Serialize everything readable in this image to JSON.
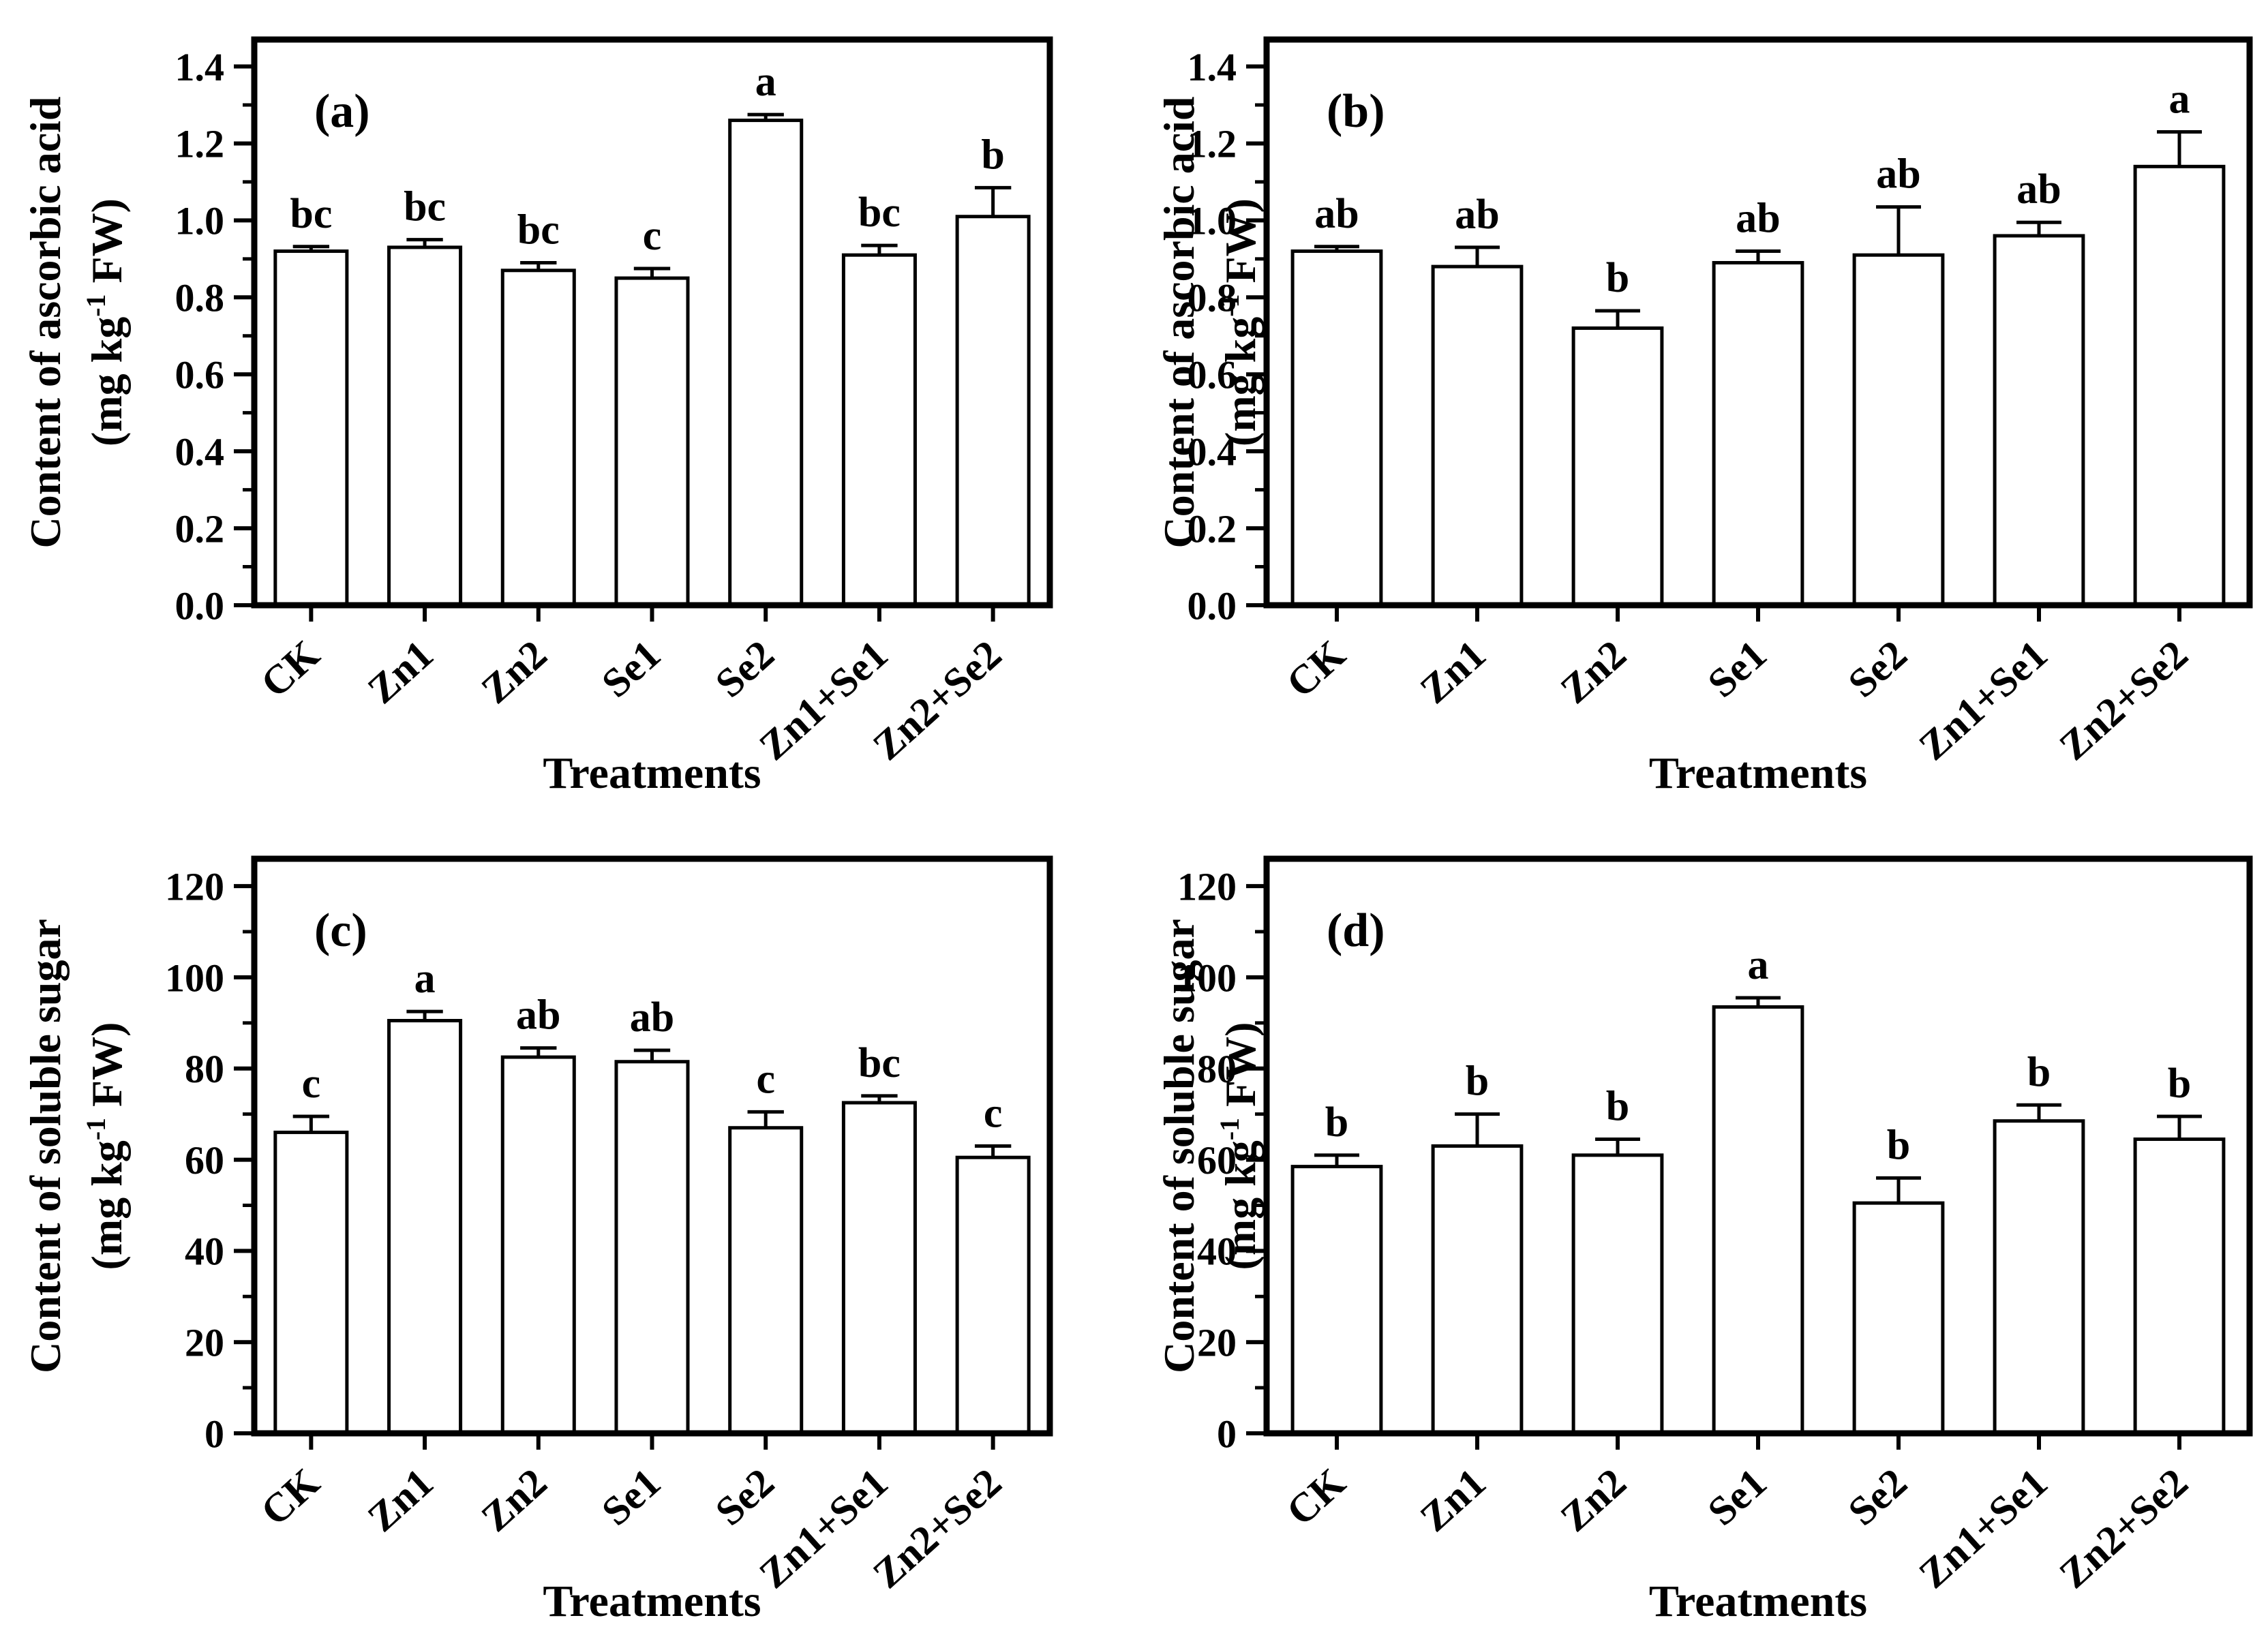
{
  "figure": {
    "background_color": "#ffffff",
    "ink_color": "#000000",
    "layout": "2x2 grid of bar chart panels"
  },
  "chart_data": [
    {
      "id": "a",
      "type": "bar",
      "panel_label": "(a)",
      "ylabel_line1": "Content of ascorbic acid",
      "ylabel_unit_prefix": "(mg kg",
      "ylabel_unit_sup": "-1",
      "ylabel_unit_suffix": " FW)",
      "xlabel": "Treatments",
      "categories": [
        "CK",
        "Zn1",
        "Zn2",
        "Se1",
        "Se2",
        "Zn1+Se1",
        "Zn2+Se2"
      ],
      "values": [
        0.92,
        0.93,
        0.87,
        0.85,
        1.26,
        0.91,
        1.01
      ],
      "errors": [
        0.012,
        0.02,
        0.02,
        0.025,
        0.015,
        0.025,
        0.075
      ],
      "sig_letters": [
        "bc",
        "bc",
        "bc",
        "c",
        "a",
        "bc",
        "b"
      ],
      "ylim": [
        0,
        1.47
      ],
      "ytick_values": [
        0.0,
        0.2,
        0.4,
        0.6,
        0.8,
        1.0,
        1.2,
        1.4
      ],
      "ytick_labels": [
        "0.0",
        "0.2",
        "0.4",
        "0.6",
        "0.8",
        "1.0",
        "1.2",
        "1.4"
      ],
      "yminor_step": 0.1,
      "grid": false,
      "legend": null,
      "bar_fill": "#ffffff",
      "bar_stroke": "#000000"
    },
    {
      "id": "b",
      "type": "bar",
      "panel_label": "(b)",
      "ylabel_line1": "Content of ascorbic acid",
      "ylabel_unit_prefix": "(mg kg",
      "ylabel_unit_sup": "-1",
      "ylabel_unit_suffix": " FW)",
      "xlabel": "Treatments",
      "categories": [
        "CK",
        "Zn1",
        "Zn2",
        "Se1",
        "Se2",
        "Zn1+Se1",
        "Zn2+Se2"
      ],
      "values": [
        0.92,
        0.88,
        0.72,
        0.89,
        0.91,
        0.96,
        1.14
      ],
      "errors": [
        0.012,
        0.05,
        0.045,
        0.03,
        0.125,
        0.035,
        0.09
      ],
      "sig_letters": [
        "ab",
        "ab",
        "b",
        "ab",
        "ab",
        "ab",
        "a"
      ],
      "ylim": [
        0,
        1.47
      ],
      "ytick_values": [
        0.0,
        0.2,
        0.4,
        0.6,
        0.8,
        1.0,
        1.2,
        1.4
      ],
      "ytick_labels": [
        "0.0",
        "0.2",
        "0.4",
        "0.6",
        "0.8",
        "1.0",
        "1.2",
        "1.4"
      ],
      "yminor_step": 0.1,
      "grid": false,
      "legend": null,
      "bar_fill": "#ffffff",
      "bar_stroke": "#000000"
    },
    {
      "id": "c",
      "type": "bar",
      "panel_label": "(c)",
      "ylabel_line1": "Content of soluble sugar",
      "ylabel_unit_prefix": "(mg kg",
      "ylabel_unit_sup": "-1",
      "ylabel_unit_suffix": " FW)",
      "xlabel": "Treatments",
      "categories": [
        "CK",
        "Zn1",
        "Zn2",
        "Se1",
        "Se2",
        "Zn1+Se1",
        "Zn2+Se2"
      ],
      "values": [
        66,
        90.5,
        82.5,
        81.5,
        67,
        72.5,
        60.5
      ],
      "errors": [
        3.5,
        2,
        2,
        2.5,
        3.5,
        1.5,
        2.5
      ],
      "sig_letters": [
        "c",
        "a",
        "ab",
        "ab",
        "c",
        "bc",
        "c"
      ],
      "ylim": [
        0,
        126
      ],
      "ytick_values": [
        0,
        20,
        40,
        60,
        80,
        100,
        120
      ],
      "ytick_labels": [
        "0",
        "20",
        "40",
        "60",
        "80",
        "100",
        "120"
      ],
      "yminor_step": 10,
      "grid": false,
      "legend": null,
      "bar_fill": "#ffffff",
      "bar_stroke": "#000000"
    },
    {
      "id": "d",
      "type": "bar",
      "panel_label": "(d)",
      "ylabel_line1": "Content of soluble sugar",
      "ylabel_unit_prefix": "(mg kg",
      "ylabel_unit_sup": "-1",
      "ylabel_unit_suffix": " FW)",
      "xlabel": "Treatments",
      "categories": [
        "CK",
        "Zn1",
        "Zn2",
        "Se1",
        "Se2",
        "Zn1+Se1",
        "Zn2+Se2"
      ],
      "values": [
        58.5,
        63,
        61,
        93.5,
        50.5,
        68.5,
        64.5
      ],
      "errors": [
        2.5,
        7,
        3.5,
        2,
        5.5,
        3.5,
        5
      ],
      "sig_letters": [
        "b",
        "b",
        "b",
        "a",
        "b",
        "b",
        "b"
      ],
      "ylim": [
        0,
        126
      ],
      "ytick_values": [
        0,
        20,
        40,
        60,
        80,
        100,
        120
      ],
      "ytick_labels": [
        "0",
        "20",
        "40",
        "60",
        "80",
        "100",
        "120"
      ],
      "yminor_step": 10,
      "grid": false,
      "legend": null,
      "bar_fill": "#ffffff",
      "bar_stroke": "#000000"
    }
  ]
}
